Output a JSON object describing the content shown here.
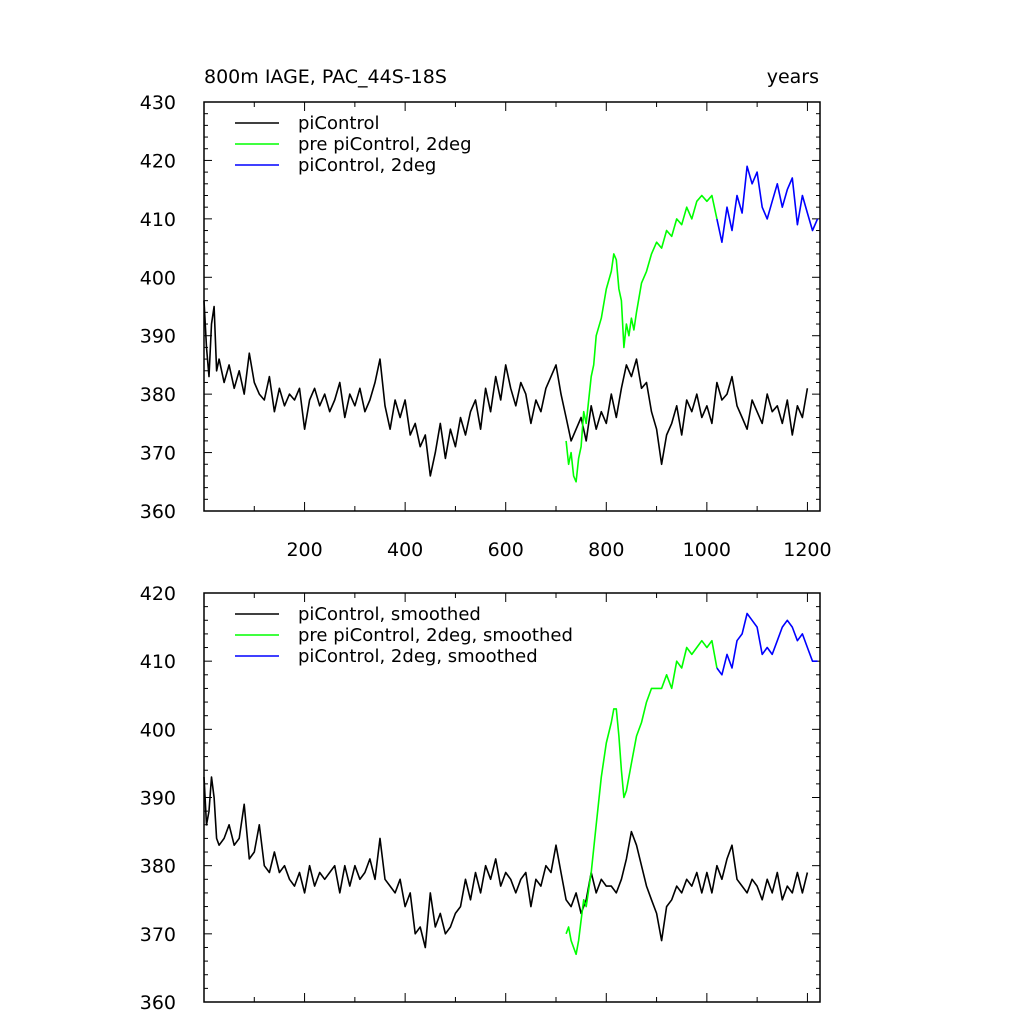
{
  "chart_data": [
    {
      "type": "line",
      "title": "800m IAGE, PAC_44S-18S",
      "right_title": "years",
      "xlim": [
        0,
        1225
      ],
      "ylim": [
        360,
        430
      ],
      "xticks": [
        200,
        400,
        600,
        800,
        1000,
        1200
      ],
      "xtick_labels": [
        "200",
        "400",
        "600",
        "800",
        "1000",
        "1200"
      ],
      "yticks": [
        360,
        370,
        380,
        390,
        400,
        410,
        420,
        430
      ],
      "ytick_labels": [
        "360",
        "370",
        "380",
        "390",
        "400",
        "410",
        "420",
        "430"
      ],
      "legend_position": "top-left",
      "series": [
        {
          "name": "piControl",
          "color": "#000000",
          "x": [
            0,
            5,
            10,
            15,
            20,
            25,
            30,
            40,
            50,
            60,
            70,
            80,
            90,
            100,
            110,
            120,
            130,
            140,
            150,
            160,
            170,
            180,
            190,
            200,
            210,
            220,
            230,
            240,
            250,
            260,
            270,
            280,
            290,
            300,
            310,
            320,
            330,
            340,
            350,
            360,
            370,
            380,
            390,
            400,
            410,
            420,
            430,
            440,
            450,
            460,
            470,
            480,
            490,
            500,
            510,
            520,
            530,
            540,
            550,
            560,
            570,
            580,
            590,
            600,
            610,
            620,
            630,
            640,
            650,
            660,
            670,
            680,
            690,
            700,
            710,
            720,
            730,
            740,
            750,
            760,
            770,
            780,
            790,
            800,
            810,
            820,
            830,
            840,
            850,
            860,
            870,
            880,
            890,
            900,
            910,
            920,
            930,
            940,
            950,
            960,
            970,
            980,
            990,
            1000,
            1010,
            1020,
            1030,
            1040,
            1050,
            1060,
            1070,
            1080,
            1090,
            1100,
            1110,
            1120,
            1130,
            1140,
            1150,
            1160,
            1170,
            1180,
            1190,
            1200
          ],
          "y": [
            396,
            388,
            383,
            392,
            395,
            384,
            386,
            382,
            385,
            381,
            384,
            380,
            387,
            382,
            380,
            379,
            383,
            377,
            381,
            378,
            380,
            379,
            381,
            374,
            379,
            381,
            378,
            380,
            377,
            379,
            382,
            376,
            380,
            378,
            381,
            377,
            379,
            382,
            386,
            378,
            374,
            379,
            376,
            379,
            373,
            375,
            371,
            373,
            366,
            370,
            375,
            369,
            374,
            371,
            376,
            373,
            377,
            379,
            374,
            381,
            377,
            383,
            379,
            385,
            381,
            378,
            382,
            380,
            375,
            379,
            377,
            381,
            383,
            385,
            380,
            376,
            372,
            374,
            376,
            372,
            378,
            374,
            377,
            375,
            380,
            376,
            381,
            385,
            383,
            386,
            381,
            382,
            377,
            374,
            368,
            373,
            375,
            378,
            373,
            379,
            377,
            380,
            376,
            378,
            375,
            382,
            379,
            380,
            383,
            378,
            376,
            374,
            379,
            377,
            375,
            380,
            377,
            378,
            375,
            379,
            373,
            378,
            376,
            381
          ]
        },
        {
          "name": "pre piControl, 2deg",
          "color": "#00ff00",
          "x": [
            720,
            725,
            730,
            735,
            740,
            745,
            750,
            755,
            760,
            765,
            770,
            775,
            780,
            790,
            800,
            810,
            815,
            820,
            825,
            830,
            835,
            840,
            845,
            850,
            855,
            860,
            870,
            880,
            890,
            900,
            910,
            920,
            930,
            940,
            950,
            960,
            970,
            980,
            990,
            1000,
            1010,
            1020
          ],
          "y": [
            372,
            368,
            370,
            366,
            365,
            369,
            371,
            377,
            375,
            379,
            383,
            385,
            390,
            393,
            398,
            401,
            404,
            403,
            398,
            396,
            388,
            392,
            390,
            393,
            391,
            394,
            399,
            401,
            404,
            406,
            405,
            408,
            407,
            410,
            409,
            412,
            410,
            413,
            414,
            413,
            414,
            410
          ]
        },
        {
          "name": "piControl, 2deg",
          "color": "#0000ff",
          "x": [
            1020,
            1030,
            1040,
            1050,
            1060,
            1070,
            1080,
            1090,
            1100,
            1110,
            1120,
            1130,
            1140,
            1150,
            1160,
            1170,
            1180,
            1190,
            1200,
            1210,
            1220
          ],
          "y": [
            410,
            406,
            412,
            408,
            414,
            411,
            419,
            416,
            418,
            412,
            410,
            413,
            416,
            412,
            415,
            417,
            409,
            414,
            411,
            408,
            410
          ]
        }
      ]
    },
    {
      "type": "line",
      "xlim": [
        0,
        1225
      ],
      "ylim": [
        360,
        420
      ],
      "xticks": [
        200,
        400,
        600,
        800,
        1000,
        1200
      ],
      "yticks": [
        360,
        370,
        380,
        390,
        400,
        410,
        420
      ],
      "ytick_labels": [
        "360",
        "370",
        "380",
        "390",
        "400",
        "410",
        "420"
      ],
      "legend_position": "top-left",
      "series": [
        {
          "name": "piControl, smoothed",
          "color": "#000000",
          "x": [
            0,
            5,
            10,
            15,
            20,
            25,
            30,
            40,
            50,
            60,
            70,
            80,
            90,
            100,
            110,
            120,
            130,
            140,
            150,
            160,
            170,
            180,
            190,
            200,
            210,
            220,
            230,
            240,
            250,
            260,
            270,
            280,
            290,
            300,
            310,
            320,
            330,
            340,
            350,
            360,
            370,
            380,
            390,
            400,
            410,
            420,
            430,
            440,
            450,
            460,
            470,
            480,
            490,
            500,
            510,
            520,
            530,
            540,
            550,
            560,
            570,
            580,
            590,
            600,
            610,
            620,
            630,
            640,
            650,
            660,
            670,
            680,
            690,
            700,
            710,
            720,
            730,
            740,
            750,
            760,
            770,
            780,
            790,
            800,
            810,
            820,
            830,
            840,
            850,
            860,
            870,
            880,
            890,
            900,
            910,
            920,
            930,
            940,
            950,
            960,
            970,
            980,
            990,
            1000,
            1010,
            1020,
            1030,
            1040,
            1050,
            1060,
            1070,
            1080,
            1090,
            1100,
            1110,
            1120,
            1130,
            1140,
            1150,
            1160,
            1170,
            1180,
            1190,
            1200
          ],
          "y": [
            393,
            386,
            388,
            393,
            390,
            384,
            383,
            384,
            386,
            383,
            384,
            389,
            381,
            382,
            386,
            380,
            379,
            382,
            379,
            380,
            378,
            377,
            379,
            376,
            380,
            377,
            379,
            378,
            379,
            380,
            376,
            380,
            377,
            380,
            378,
            379,
            381,
            378,
            384,
            378,
            377,
            376,
            378,
            374,
            376,
            370,
            371,
            368,
            376,
            371,
            373,
            370,
            371,
            373,
            374,
            378,
            375,
            379,
            376,
            380,
            378,
            381,
            377,
            379,
            378,
            376,
            378,
            379,
            374,
            378,
            377,
            380,
            379,
            383,
            379,
            375,
            374,
            376,
            373,
            375,
            379,
            376,
            378,
            377,
            377,
            376,
            378,
            381,
            385,
            383,
            380,
            377,
            375,
            373,
            369,
            374,
            375,
            377,
            376,
            378,
            377,
            379,
            376,
            379,
            376,
            380,
            378,
            381,
            383,
            378,
            377,
            376,
            378,
            377,
            375,
            378,
            376,
            379,
            375,
            377,
            376,
            379,
            376,
            379
          ]
        },
        {
          "name": "pre piControl, 2deg, smoothed",
          "color": "#00ff00",
          "x": [
            720,
            725,
            730,
            735,
            740,
            745,
            750,
            755,
            760,
            770,
            780,
            790,
            800,
            810,
            815,
            820,
            825,
            830,
            835,
            840,
            850,
            860,
            870,
            880,
            890,
            900,
            910,
            920,
            930,
            940,
            950,
            960,
            970,
            980,
            990,
            1000,
            1010,
            1020
          ],
          "y": [
            370,
            371,
            369,
            368,
            367,
            369,
            372,
            375,
            374,
            379,
            386,
            393,
            398,
            401,
            403,
            403,
            399,
            394,
            390,
            391,
            395,
            399,
            401,
            404,
            406,
            406,
            406,
            408,
            406,
            410,
            409,
            412,
            411,
            412,
            413,
            412,
            413,
            409
          ]
        },
        {
          "name": "piControl, 2deg, smoothed",
          "color": "#0000ff",
          "x": [
            1020,
            1030,
            1040,
            1050,
            1060,
            1070,
            1080,
            1090,
            1100,
            1110,
            1120,
            1130,
            1140,
            1150,
            1160,
            1170,
            1180,
            1190,
            1200,
            1210,
            1220
          ],
          "y": [
            409,
            408,
            411,
            409,
            413,
            414,
            417,
            416,
            415,
            411,
            412,
            411,
            413,
            415,
            416,
            415,
            413,
            414,
            412,
            410,
            410
          ]
        }
      ]
    }
  ]
}
